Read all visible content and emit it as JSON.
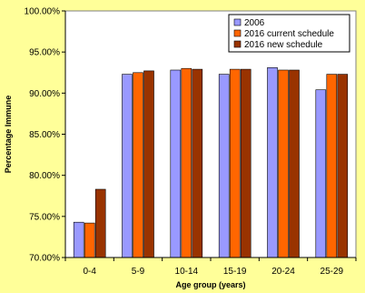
{
  "chart_data": {
    "type": "bar",
    "title": "",
    "xlabel": "Age group (years)",
    "ylabel": "Percentage Immune",
    "categories": [
      "0-4",
      "5-9",
      "10-14",
      "15-19",
      "20-24",
      "25-29"
    ],
    "series": [
      {
        "name": "2006",
        "color": "#9999ff",
        "values": [
          74.3,
          92.3,
          92.8,
          92.3,
          93.1,
          90.4
        ]
      },
      {
        "name": "2016 current schedule",
        "color": "#ff6600",
        "values": [
          74.2,
          92.5,
          93.0,
          92.9,
          92.8,
          92.3
        ]
      },
      {
        "name": "2016 new schedule",
        "color": "#993300",
        "values": [
          78.3,
          92.7,
          92.9,
          92.9,
          92.8,
          92.3
        ]
      }
    ],
    "ylim": [
      70,
      100
    ],
    "yticks": [
      70,
      75,
      80,
      85,
      90,
      95,
      100
    ],
    "ytick_labels": [
      "70.00%",
      "75.00%",
      "80.00%",
      "85.00%",
      "90.00%",
      "95.00%",
      "100.00%"
    ],
    "grid": false,
    "legend_position": "top-right",
    "background_color": "#ffff99",
    "plot_background_color": "#ffffff"
  }
}
